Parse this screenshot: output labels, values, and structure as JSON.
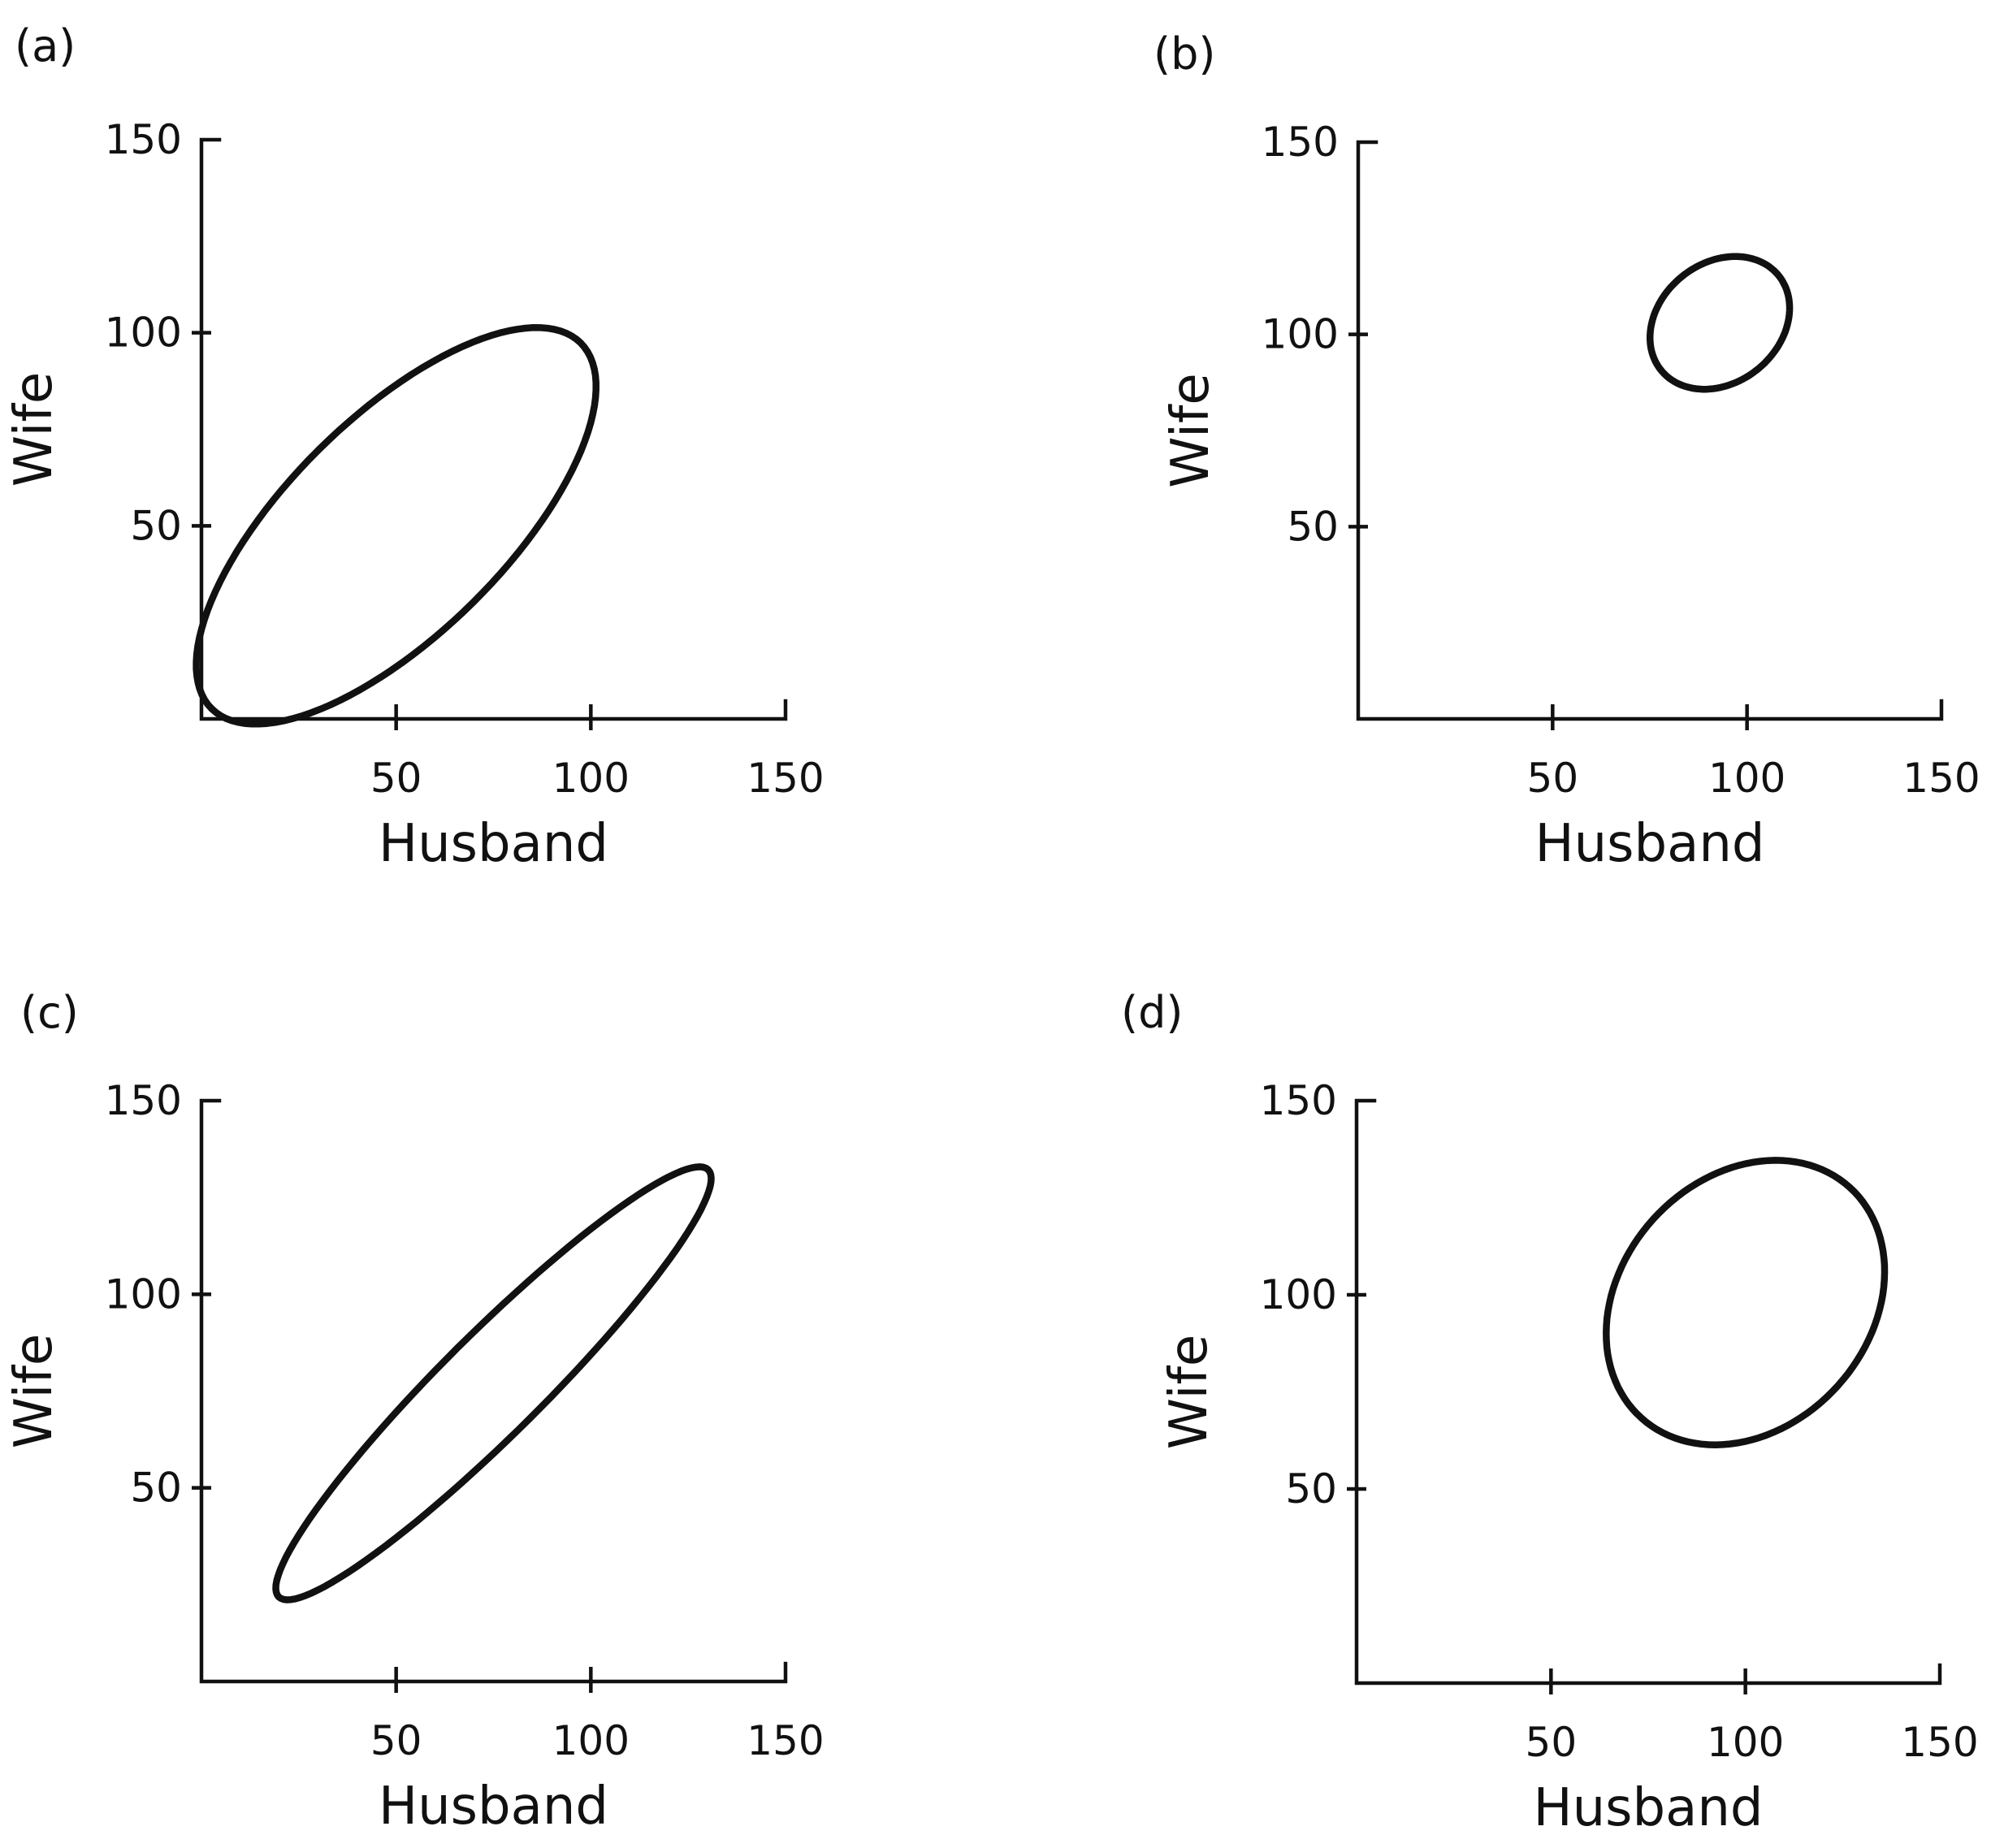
{
  "chart_data": [
    {
      "type": "scatter",
      "panel_label": "(a)",
      "xlabel": "Husband",
      "ylabel": "Wife",
      "xlim": [
        0,
        150
      ],
      "ylim": [
        0,
        150
      ],
      "xticks": [
        50,
        100,
        150
      ],
      "yticks": [
        50,
        100,
        150
      ],
      "grid": false,
      "contour": {
        "shape": "ellipse",
        "center": [
          50,
          50
        ],
        "extent_x": [
          6,
          98
        ],
        "extent_y": [
          5,
          95
        ],
        "tilt": "positive"
      }
    },
    {
      "type": "scatter",
      "panel_label": "(b)",
      "xlabel": "Husband",
      "ylabel": "Wife",
      "xlim": [
        0,
        150
      ],
      "ylim": [
        0,
        150
      ],
      "xticks": [
        50,
        100,
        150
      ],
      "yticks": [
        50,
        100,
        150
      ],
      "grid": false,
      "contour": {
        "shape": "ellipse",
        "center": [
          93,
          103
        ],
        "extent_x": [
          74,
          111
        ],
        "extent_y": [
          86,
          120
        ],
        "tilt": "positive"
      }
    },
    {
      "type": "scatter",
      "panel_label": "(c)",
      "xlabel": "Husband",
      "ylabel": "Wife",
      "xlim": [
        0,
        150
      ],
      "ylim": [
        0,
        150
      ],
      "xticks": [
        50,
        100,
        150
      ],
      "yticks": [
        50,
        100,
        150
      ],
      "grid": false,
      "contour": {
        "shape": "ellipse",
        "center": [
          75,
          77
        ],
        "extent_x": [
          21,
          129
        ],
        "extent_y": [
          22,
          131
        ],
        "tilt": "positive"
      }
    },
    {
      "type": "scatter",
      "panel_label": "(d)",
      "xlabel": "Husband",
      "ylabel": "Wife",
      "xlim": [
        0,
        150
      ],
      "ylim": [
        0,
        150
      ],
      "xticks": [
        50,
        100,
        150
      ],
      "yticks": [
        50,
        100,
        150
      ],
      "grid": false,
      "contour": {
        "shape": "ellipse",
        "center": [
          100,
          98
        ],
        "extent_x": [
          62,
          137
        ],
        "extent_y": [
          60,
          136
        ],
        "tilt": "positive"
      }
    }
  ]
}
